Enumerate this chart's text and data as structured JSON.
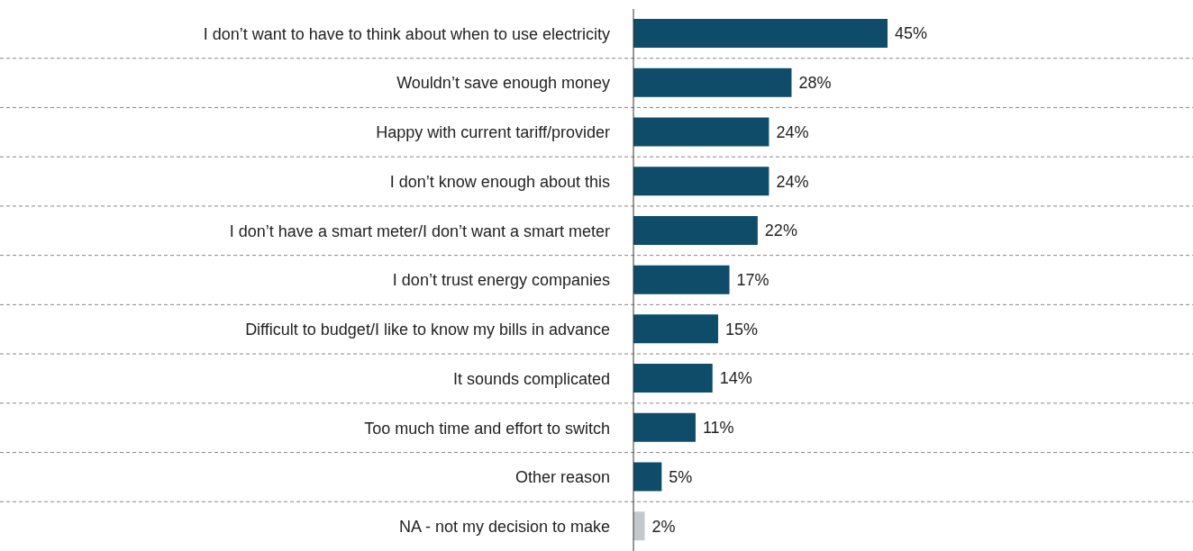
{
  "chart_data": {
    "type": "bar",
    "orientation": "horizontal",
    "categories": [
      "I don’t want to have to think about when to use electricity",
      "Wouldn’t save enough money",
      "Happy with current tariff/provider",
      "I don’t know enough about this",
      "I don’t have a smart meter/I don’t want a smart meter",
      "I don’t trust energy companies",
      "Difficult to budget/I like to know my bills in advance",
      "It sounds complicated",
      "Too much time and effort to switch",
      "Other reason",
      "NA - not my decision to make"
    ],
    "values": [
      45,
      28,
      24,
      24,
      22,
      17,
      15,
      14,
      11,
      5,
      2
    ],
    "value_labels": [
      "45%",
      "28%",
      "24%",
      "24%",
      "22%",
      "17%",
      "15%",
      "14%",
      "11%",
      "5%",
      "2%"
    ],
    "colors": [
      "#0f4c69",
      "#0f4c69",
      "#0f4c69",
      "#0f4c69",
      "#0f4c69",
      "#0f4c69",
      "#0f4c69",
      "#0f4c69",
      "#0f4c69",
      "#0f4c69",
      "#c3c8cc"
    ],
    "grid": "y"
  }
}
